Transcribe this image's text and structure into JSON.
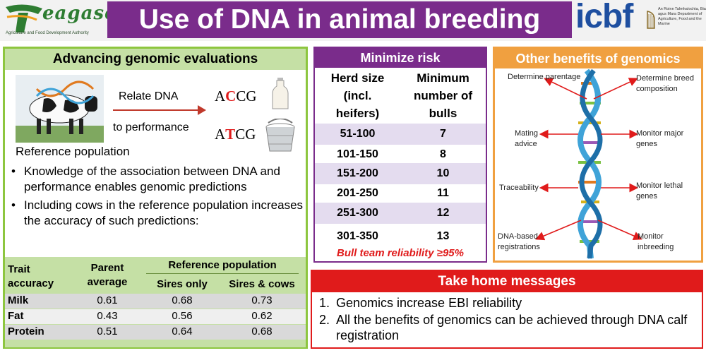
{
  "header": {
    "title": "Use of DNA in animal breeding",
    "teagasc_logo_text": "eagasc",
    "teagasc_tagline": "Agriculture and Food Development Authority",
    "icbf_logo_text": "icbf",
    "department_text": "An Roinn Talmhaíochta, Bia agus Mara Department of Agriculture, Food and the Marine"
  },
  "left": {
    "heading": "Advancing genomic evaluations",
    "relate_line1": "Relate DNA",
    "relate_line2": "to performance",
    "seq1": {
      "pre": "A",
      "red": "C",
      "post": "CG"
    },
    "seq2": {
      "pre": "A",
      "red": "T",
      "post": "CG"
    },
    "reference_label": "Reference population",
    "bullets": [
      "Knowledge of the association between DNA and performance enables genomic predictions",
      "Including cows in the reference population increases the accuracy of such predictions:"
    ],
    "table": {
      "h_trait_accuracy": "Trait accuracy",
      "h_parent_average": "Parent average",
      "h_reference_population": "Reference population",
      "h_sires_only": "Sires only",
      "h_sires_cows": "Sires & cows",
      "rows": [
        {
          "trait": "Milk",
          "parent": "0.61",
          "sires": "0.68",
          "cows": "0.73"
        },
        {
          "trait": "Fat",
          "parent": "0.43",
          "sires": "0.56",
          "cows": "0.62"
        },
        {
          "trait": "Protein",
          "parent": "0.51",
          "sires": "0.64",
          "cows": "0.68"
        }
      ]
    }
  },
  "risk": {
    "heading": "Minimize risk",
    "col1": [
      "Herd size",
      "(incl.",
      "heifers)"
    ],
    "col2": [
      "Minimum",
      "number of",
      "bulls"
    ],
    "rows": [
      {
        "herd": "51-100",
        "bulls": "7"
      },
      {
        "herd": "101-150",
        "bulls": "8"
      },
      {
        "herd": "151-200",
        "bulls": "10"
      },
      {
        "herd": "201-250",
        "bulls": "11"
      },
      {
        "herd": "251-300",
        "bulls": "12"
      },
      {
        "herd": "301-350",
        "bulls": "13"
      }
    ],
    "reliability": "Bull team reliability ≥95%"
  },
  "benefits": {
    "heading": "Other benefits of genomics",
    "labels": {
      "parentage": "Determine parentage",
      "breed": "Determine breed composition",
      "mating": "Mating advice",
      "major_genes": "Monitor major genes",
      "traceability": "Traceability",
      "lethal_genes": "Monitor lethal genes",
      "dna_reg": "DNA-based registrations",
      "inbreeding": "Monitor inbreeding"
    },
    "colors": {
      "arrow": "#e01b1b",
      "helix_blue": "#3fa3d8"
    }
  },
  "takehome": {
    "heading": "Take home messages",
    "items": [
      {
        "num": "1.",
        "text": "Genomics increase EBI reliability"
      },
      {
        "num": "2.",
        "text": "All the benefits of genomics can be achieved through DNA calf registration"
      }
    ]
  },
  "colors": {
    "purple": "#7a2c8b",
    "green_light": "#c5e0a5",
    "green_border": "#8dc63f",
    "orange": "#f0a040",
    "red": "#e01b1b"
  }
}
